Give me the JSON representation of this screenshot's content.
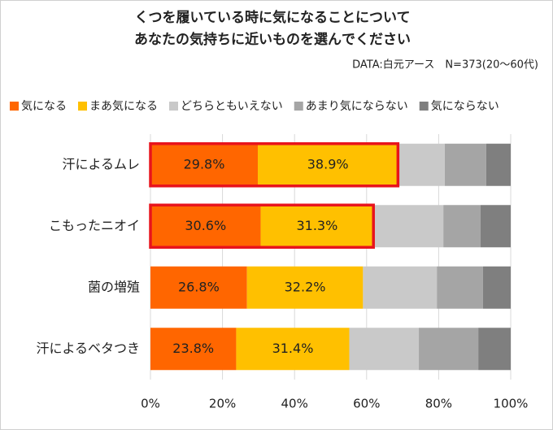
{
  "chart_data": {
    "type": "stacked-barh",
    "title": [
      "くつを履いている時に気になることについて",
      "あなたの気持ちに近いものを選んでください"
    ],
    "subtitle": "DATA:白元アース　N=373(20～60代)",
    "categories": [
      "汗によるムレ",
      "こもったニオイ",
      "菌の増殖",
      "汗によるベタつき"
    ],
    "series": [
      {
        "name": "気になる",
        "color": "#ff6600",
        "values": [
          29.8,
          30.6,
          26.8,
          23.8
        ],
        "value_labels": [
          "29.8%",
          "30.6%",
          "26.8%",
          "23.8%"
        ]
      },
      {
        "name": "まあ気になる",
        "color": "#ffc000",
        "values": [
          38.9,
          31.3,
          32.2,
          31.4
        ],
        "value_labels": [
          "38.9%",
          "31.3%",
          "32.2%",
          "31.4%"
        ]
      },
      {
        "name": "どちらともいえない",
        "color": "#c9c9c9",
        "values": [
          13.0,
          19.4,
          20.5,
          19.3
        ]
      },
      {
        "name": "あまり気にならない",
        "color": "#a5a5a5",
        "values": [
          11.5,
          10.3,
          12.8,
          16.5
        ]
      },
      {
        "name": "気にならない",
        "color": "#7f7f7f",
        "values": [
          6.8,
          8.4,
          7.7,
          9.0
        ]
      }
    ],
    "xlim": [
      0,
      100
    ],
    "xticks": [
      {
        "value": 0,
        "label": "0%"
      },
      {
        "value": 20,
        "label": "20%"
      },
      {
        "value": 40,
        "label": "40%"
      },
      {
        "value": 60,
        "label": "60%"
      },
      {
        "value": 80,
        "label": "80%"
      },
      {
        "value": 100,
        "label": "100%"
      }
    ],
    "grid": true,
    "legend": "top-left",
    "highlighted_categories": [
      0,
      1
    ],
    "highlight_color": "#e8141c"
  }
}
